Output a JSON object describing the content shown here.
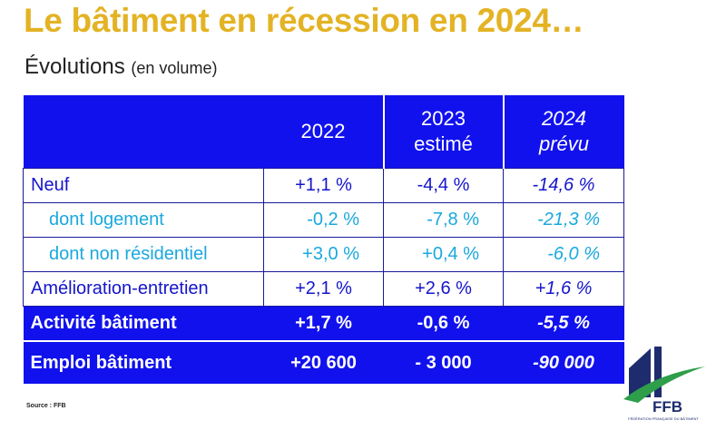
{
  "title": "Le bâtiment en récession en 2024…",
  "subtitle": {
    "text": "Évolutions",
    "note": "(en volume)"
  },
  "table": {
    "headers": [
      {
        "line1": "",
        "line2": ""
      },
      {
        "line1": "2022",
        "line2": ""
      },
      {
        "line1": "2023",
        "line2": "estimé"
      },
      {
        "line1": "2024",
        "line2": "prévu"
      }
    ],
    "rows": [
      {
        "label": "Neuf",
        "v2022": "+1,1 %",
        "v2023": "-4,4 %",
        "v2024": "-14,6 %"
      },
      {
        "label": "dont logement",
        "v2022": "-0,2 %",
        "v2023": "-7,8 %",
        "v2024": "-21,3 %"
      },
      {
        "label": "dont non résidentiel",
        "v2022": "+3,0 %",
        "v2023": "+0,4 %",
        "v2024": "-6,0 %"
      },
      {
        "label": "Amélioration-entretien",
        "v2022": "+2,1 %",
        "v2023": "+2,6 %",
        "v2024": "+1,6 %"
      },
      {
        "label": "Activité bâtiment",
        "v2022": "+1,7 %",
        "v2023": "-0,6 %",
        "v2024": "-5,5 %"
      },
      {
        "label": "Emploi bâtiment",
        "v2022": "+20 600",
        "v2023": "- 3 000",
        "v2024": "-90 000"
      }
    ]
  },
  "source": "Source : FFB",
  "logo": {
    "name": "FFB",
    "tagline": "FÉDÉRATION FRANÇAISE DU BÂTIMENT"
  },
  "colors": {
    "title": "#E3B324",
    "header_bg": "#1111EE",
    "main_text": "#1515CC",
    "sub_text": "#1AA8DE",
    "logo_blue": "#1E2C6E",
    "logo_green": "#2E9E4A"
  }
}
